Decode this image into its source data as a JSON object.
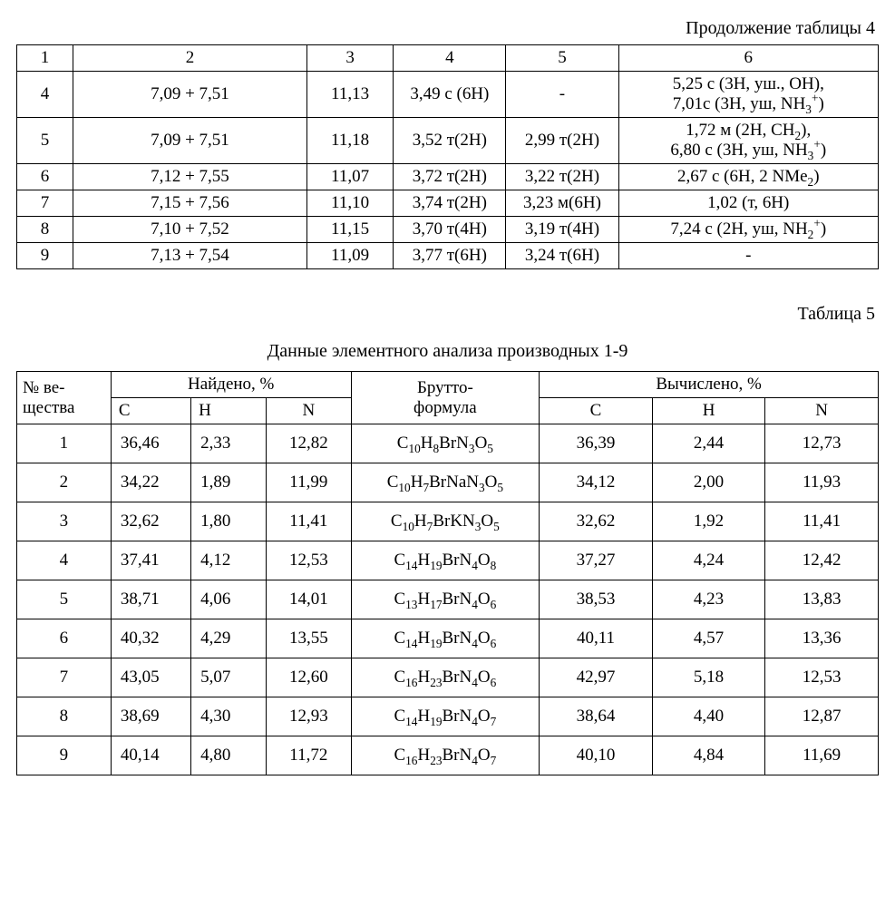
{
  "table4": {
    "caption": "Продолжение таблицы 4",
    "head": [
      "1",
      "2",
      "3",
      "4",
      "5",
      "6"
    ],
    "rows": [
      {
        "n": "4",
        "c2": "7,09 + 7,51",
        "c3": "11,13",
        "c4": "3,49 с (6H)",
        "c5": "-",
        "c6": "5,25 с (3H, уш., OH),\n7,01с (3H, уш, NH₃⁺)"
      },
      {
        "n": "5",
        "c2": "7,09 + 7,51",
        "c3": "11,18",
        "c4": "3,52 т(2H)",
        "c5": "2,99 т(2H)",
        "c6": "1,72 м (2H, CH₂),\n6,80 с (3H, уш, NH₃⁺)"
      },
      {
        "n": "6",
        "c2": "7,12 + 7,55",
        "c3": "11,07",
        "c4": "3,72 т(2H)",
        "c5": "3,22 т(2H)",
        "c6": "2,67 с (6H, 2 NMe₂)"
      },
      {
        "n": "7",
        "c2": "7,15 + 7,56",
        "c3": "11,10",
        "c4": "3,74 т(2H)",
        "c5": "3,23 м(6H)",
        "c6": "1,02 (т, 6H)"
      },
      {
        "n": "8",
        "c2": "7,10 + 7,52",
        "c3": "11,15",
        "c4": "3,70 т(4H)",
        "c5": "3,19 т(4H)",
        "c6": "7,24 с (2H, уш, NH₂⁺)"
      },
      {
        "n": "9",
        "c2": "7,13 + 7,54",
        "c3": "11,09",
        "c4": "3,77 т(6H)",
        "c5": "3,24 т(6H)",
        "c6": "-"
      }
    ]
  },
  "table5": {
    "label": "Таблица 5",
    "title": "Данные элементного анализа производных 1-9",
    "head": {
      "compound": "№ ве-щества",
      "found": "Найдено, %",
      "formula_top": "Брутто-",
      "formula_bottom": "формула",
      "calc": "Вычислено, %",
      "sub": [
        "C",
        "H",
        "N",
        "C",
        "H",
        "N"
      ]
    },
    "rows": [
      {
        "n": "1",
        "fc": "36,46",
        "fh": "2,33",
        "fn": "12,82",
        "formula": "C₁₀H₈BrN₃O₅",
        "cc": "36,39",
        "ch": "2,44",
        "cn": "12,73"
      },
      {
        "n": "2",
        "fc": "34,22",
        "fh": "1,89",
        "fn": "11,99",
        "formula": "C₁₀H₇BrNaN₃O₅",
        "cc": "34,12",
        "ch": "2,00",
        "cn": "11,93"
      },
      {
        "n": "3",
        "fc": "32,62",
        "fh": "1,80",
        "fn": "11,41",
        "formula": "C₁₀H₇BrKN₃O₅",
        "cc": "32,62",
        "ch": "1,92",
        "cn": "11,41"
      },
      {
        "n": "4",
        "fc": "37,41",
        "fh": "4,12",
        "fn": "12,53",
        "formula": "C₁₄H₁₉BrN₄O₈",
        "cc": "37,27",
        "ch": "4,24",
        "cn": "12,42"
      },
      {
        "n": "5",
        "fc": "38,71",
        "fh": "4,06",
        "fn": "14,01",
        "formula": "C₁₃H₁₇BrN₄O₆",
        "cc": "38,53",
        "ch": "4,23",
        "cn": "13,83"
      },
      {
        "n": "6",
        "fc": "40,32",
        "fh": "4,29",
        "fn": "13,55",
        "formula": "C₁₄H₁₉BrN₄O₆",
        "cc": "40,11",
        "ch": "4,57",
        "cn": "13,36"
      },
      {
        "n": "7",
        "fc": "43,05",
        "fh": "5,07",
        "fn": "12,60",
        "formula": "C₁₆H₂₃BrN₄O₆",
        "cc": "42,97",
        "ch": "5,18",
        "cn": "12,53"
      },
      {
        "n": "8",
        "fc": "38,69",
        "fh": "4,30",
        "fn": "12,93",
        "formula": "C₁₄H₁₉BrN₄O₇",
        "cc": "38,64",
        "ch": "4,40",
        "cn": "12,87"
      },
      {
        "n": "9",
        "fc": "40,14",
        "fh": "4,80",
        "fn": "11,72",
        "formula": "C₁₆H₂₃BrN₄O₇",
        "cc": "40,10",
        "ch": "4,84",
        "cn": "11,69"
      }
    ]
  },
  "style": {
    "font_family": "Times New Roman",
    "font_size_pt": 14,
    "border_color": "#000000",
    "background_color": "#ffffff",
    "text_color": "#000000"
  }
}
